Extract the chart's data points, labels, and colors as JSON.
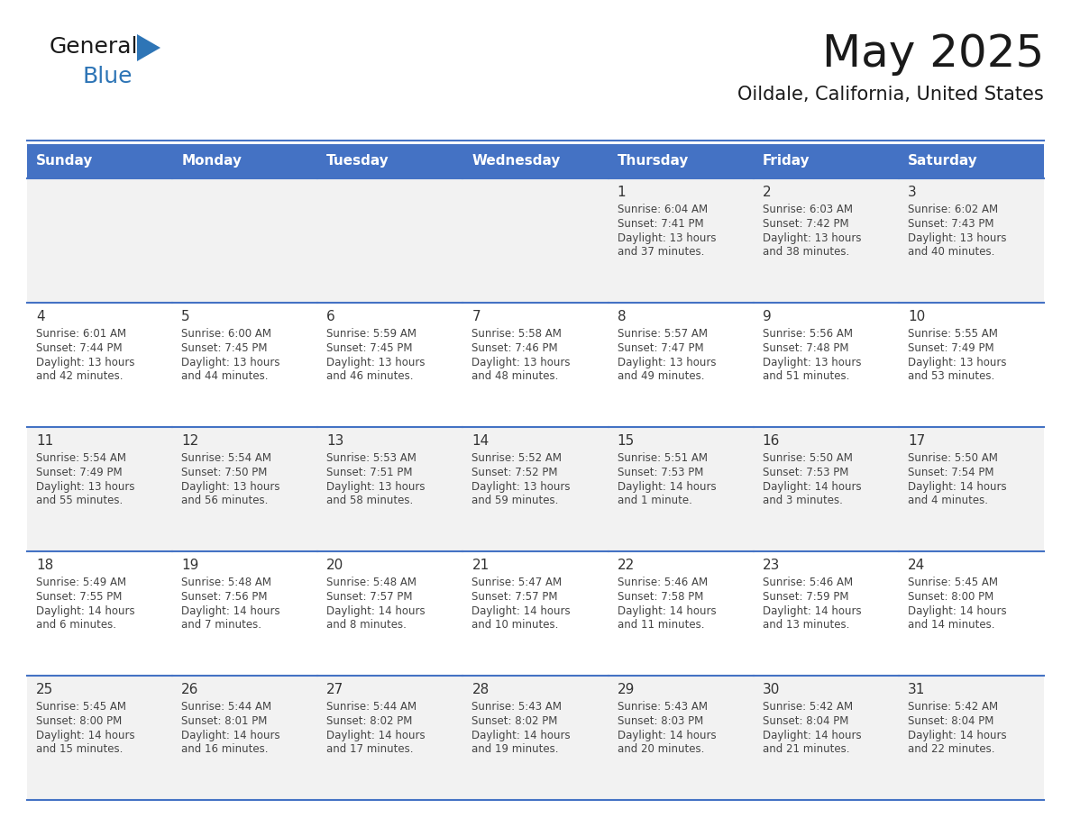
{
  "title": "May 2025",
  "subtitle": "Oildale, California, United States",
  "days_of_week": [
    "Sunday",
    "Monday",
    "Tuesday",
    "Wednesday",
    "Thursday",
    "Friday",
    "Saturday"
  ],
  "header_bg": "#4472C4",
  "header_text": "#FFFFFF",
  "row_bg_odd": "#F2F2F2",
  "row_bg_even": "#FFFFFF",
  "border_color": "#4472C4",
  "cell_border_color": "#AAAAAA",
  "text_color": "#444444",
  "day_number_color": "#333333",
  "logo_general_color": "#1a1a1a",
  "logo_blue_color": "#2E75B6",
  "logo_triangle_color": "#2E75B6",
  "title_color": "#1a1a1a",
  "subtitle_color": "#1a1a1a",
  "calendar_data": [
    [
      null,
      null,
      null,
      null,
      {
        "day": 1,
        "sunrise": "6:04 AM",
        "sunset": "7:41 PM",
        "daylight": "13 hours and 37 minutes"
      },
      {
        "day": 2,
        "sunrise": "6:03 AM",
        "sunset": "7:42 PM",
        "daylight": "13 hours and 38 minutes"
      },
      {
        "day": 3,
        "sunrise": "6:02 AM",
        "sunset": "7:43 PM",
        "daylight": "13 hours and 40 minutes"
      }
    ],
    [
      {
        "day": 4,
        "sunrise": "6:01 AM",
        "sunset": "7:44 PM",
        "daylight": "13 hours and 42 minutes"
      },
      {
        "day": 5,
        "sunrise": "6:00 AM",
        "sunset": "7:45 PM",
        "daylight": "13 hours and 44 minutes"
      },
      {
        "day": 6,
        "sunrise": "5:59 AM",
        "sunset": "7:45 PM",
        "daylight": "13 hours and 46 minutes"
      },
      {
        "day": 7,
        "sunrise": "5:58 AM",
        "sunset": "7:46 PM",
        "daylight": "13 hours and 48 minutes"
      },
      {
        "day": 8,
        "sunrise": "5:57 AM",
        "sunset": "7:47 PM",
        "daylight": "13 hours and 49 minutes"
      },
      {
        "day": 9,
        "sunrise": "5:56 AM",
        "sunset": "7:48 PM",
        "daylight": "13 hours and 51 minutes"
      },
      {
        "day": 10,
        "sunrise": "5:55 AM",
        "sunset": "7:49 PM",
        "daylight": "13 hours and 53 minutes"
      }
    ],
    [
      {
        "day": 11,
        "sunrise": "5:54 AM",
        "sunset": "7:49 PM",
        "daylight": "13 hours and 55 minutes"
      },
      {
        "day": 12,
        "sunrise": "5:54 AM",
        "sunset": "7:50 PM",
        "daylight": "13 hours and 56 minutes"
      },
      {
        "day": 13,
        "sunrise": "5:53 AM",
        "sunset": "7:51 PM",
        "daylight": "13 hours and 58 minutes"
      },
      {
        "day": 14,
        "sunrise": "5:52 AM",
        "sunset": "7:52 PM",
        "daylight": "13 hours and 59 minutes"
      },
      {
        "day": 15,
        "sunrise": "5:51 AM",
        "sunset": "7:53 PM",
        "daylight": "14 hours and 1 minute"
      },
      {
        "day": 16,
        "sunrise": "5:50 AM",
        "sunset": "7:53 PM",
        "daylight": "14 hours and 3 minutes"
      },
      {
        "day": 17,
        "sunrise": "5:50 AM",
        "sunset": "7:54 PM",
        "daylight": "14 hours and 4 minutes"
      }
    ],
    [
      {
        "day": 18,
        "sunrise": "5:49 AM",
        "sunset": "7:55 PM",
        "daylight": "14 hours and 6 minutes"
      },
      {
        "day": 19,
        "sunrise": "5:48 AM",
        "sunset": "7:56 PM",
        "daylight": "14 hours and 7 minutes"
      },
      {
        "day": 20,
        "sunrise": "5:48 AM",
        "sunset": "7:57 PM",
        "daylight": "14 hours and 8 minutes"
      },
      {
        "day": 21,
        "sunrise": "5:47 AM",
        "sunset": "7:57 PM",
        "daylight": "14 hours and 10 minutes"
      },
      {
        "day": 22,
        "sunrise": "5:46 AM",
        "sunset": "7:58 PM",
        "daylight": "14 hours and 11 minutes"
      },
      {
        "day": 23,
        "sunrise": "5:46 AM",
        "sunset": "7:59 PM",
        "daylight": "14 hours and 13 minutes"
      },
      {
        "day": 24,
        "sunrise": "5:45 AM",
        "sunset": "8:00 PM",
        "daylight": "14 hours and 14 minutes"
      }
    ],
    [
      {
        "day": 25,
        "sunrise": "5:45 AM",
        "sunset": "8:00 PM",
        "daylight": "14 hours and 15 minutes"
      },
      {
        "day": 26,
        "sunrise": "5:44 AM",
        "sunset": "8:01 PM",
        "daylight": "14 hours and 16 minutes"
      },
      {
        "day": 27,
        "sunrise": "5:44 AM",
        "sunset": "8:02 PM",
        "daylight": "14 hours and 17 minutes"
      },
      {
        "day": 28,
        "sunrise": "5:43 AM",
        "sunset": "8:02 PM",
        "daylight": "14 hours and 19 minutes"
      },
      {
        "day": 29,
        "sunrise": "5:43 AM",
        "sunset": "8:03 PM",
        "daylight": "14 hours and 20 minutes"
      },
      {
        "day": 30,
        "sunrise": "5:42 AM",
        "sunset": "8:04 PM",
        "daylight": "14 hours and 21 minutes"
      },
      {
        "day": 31,
        "sunrise": "5:42 AM",
        "sunset": "8:04 PM",
        "daylight": "14 hours and 22 minutes"
      }
    ]
  ]
}
